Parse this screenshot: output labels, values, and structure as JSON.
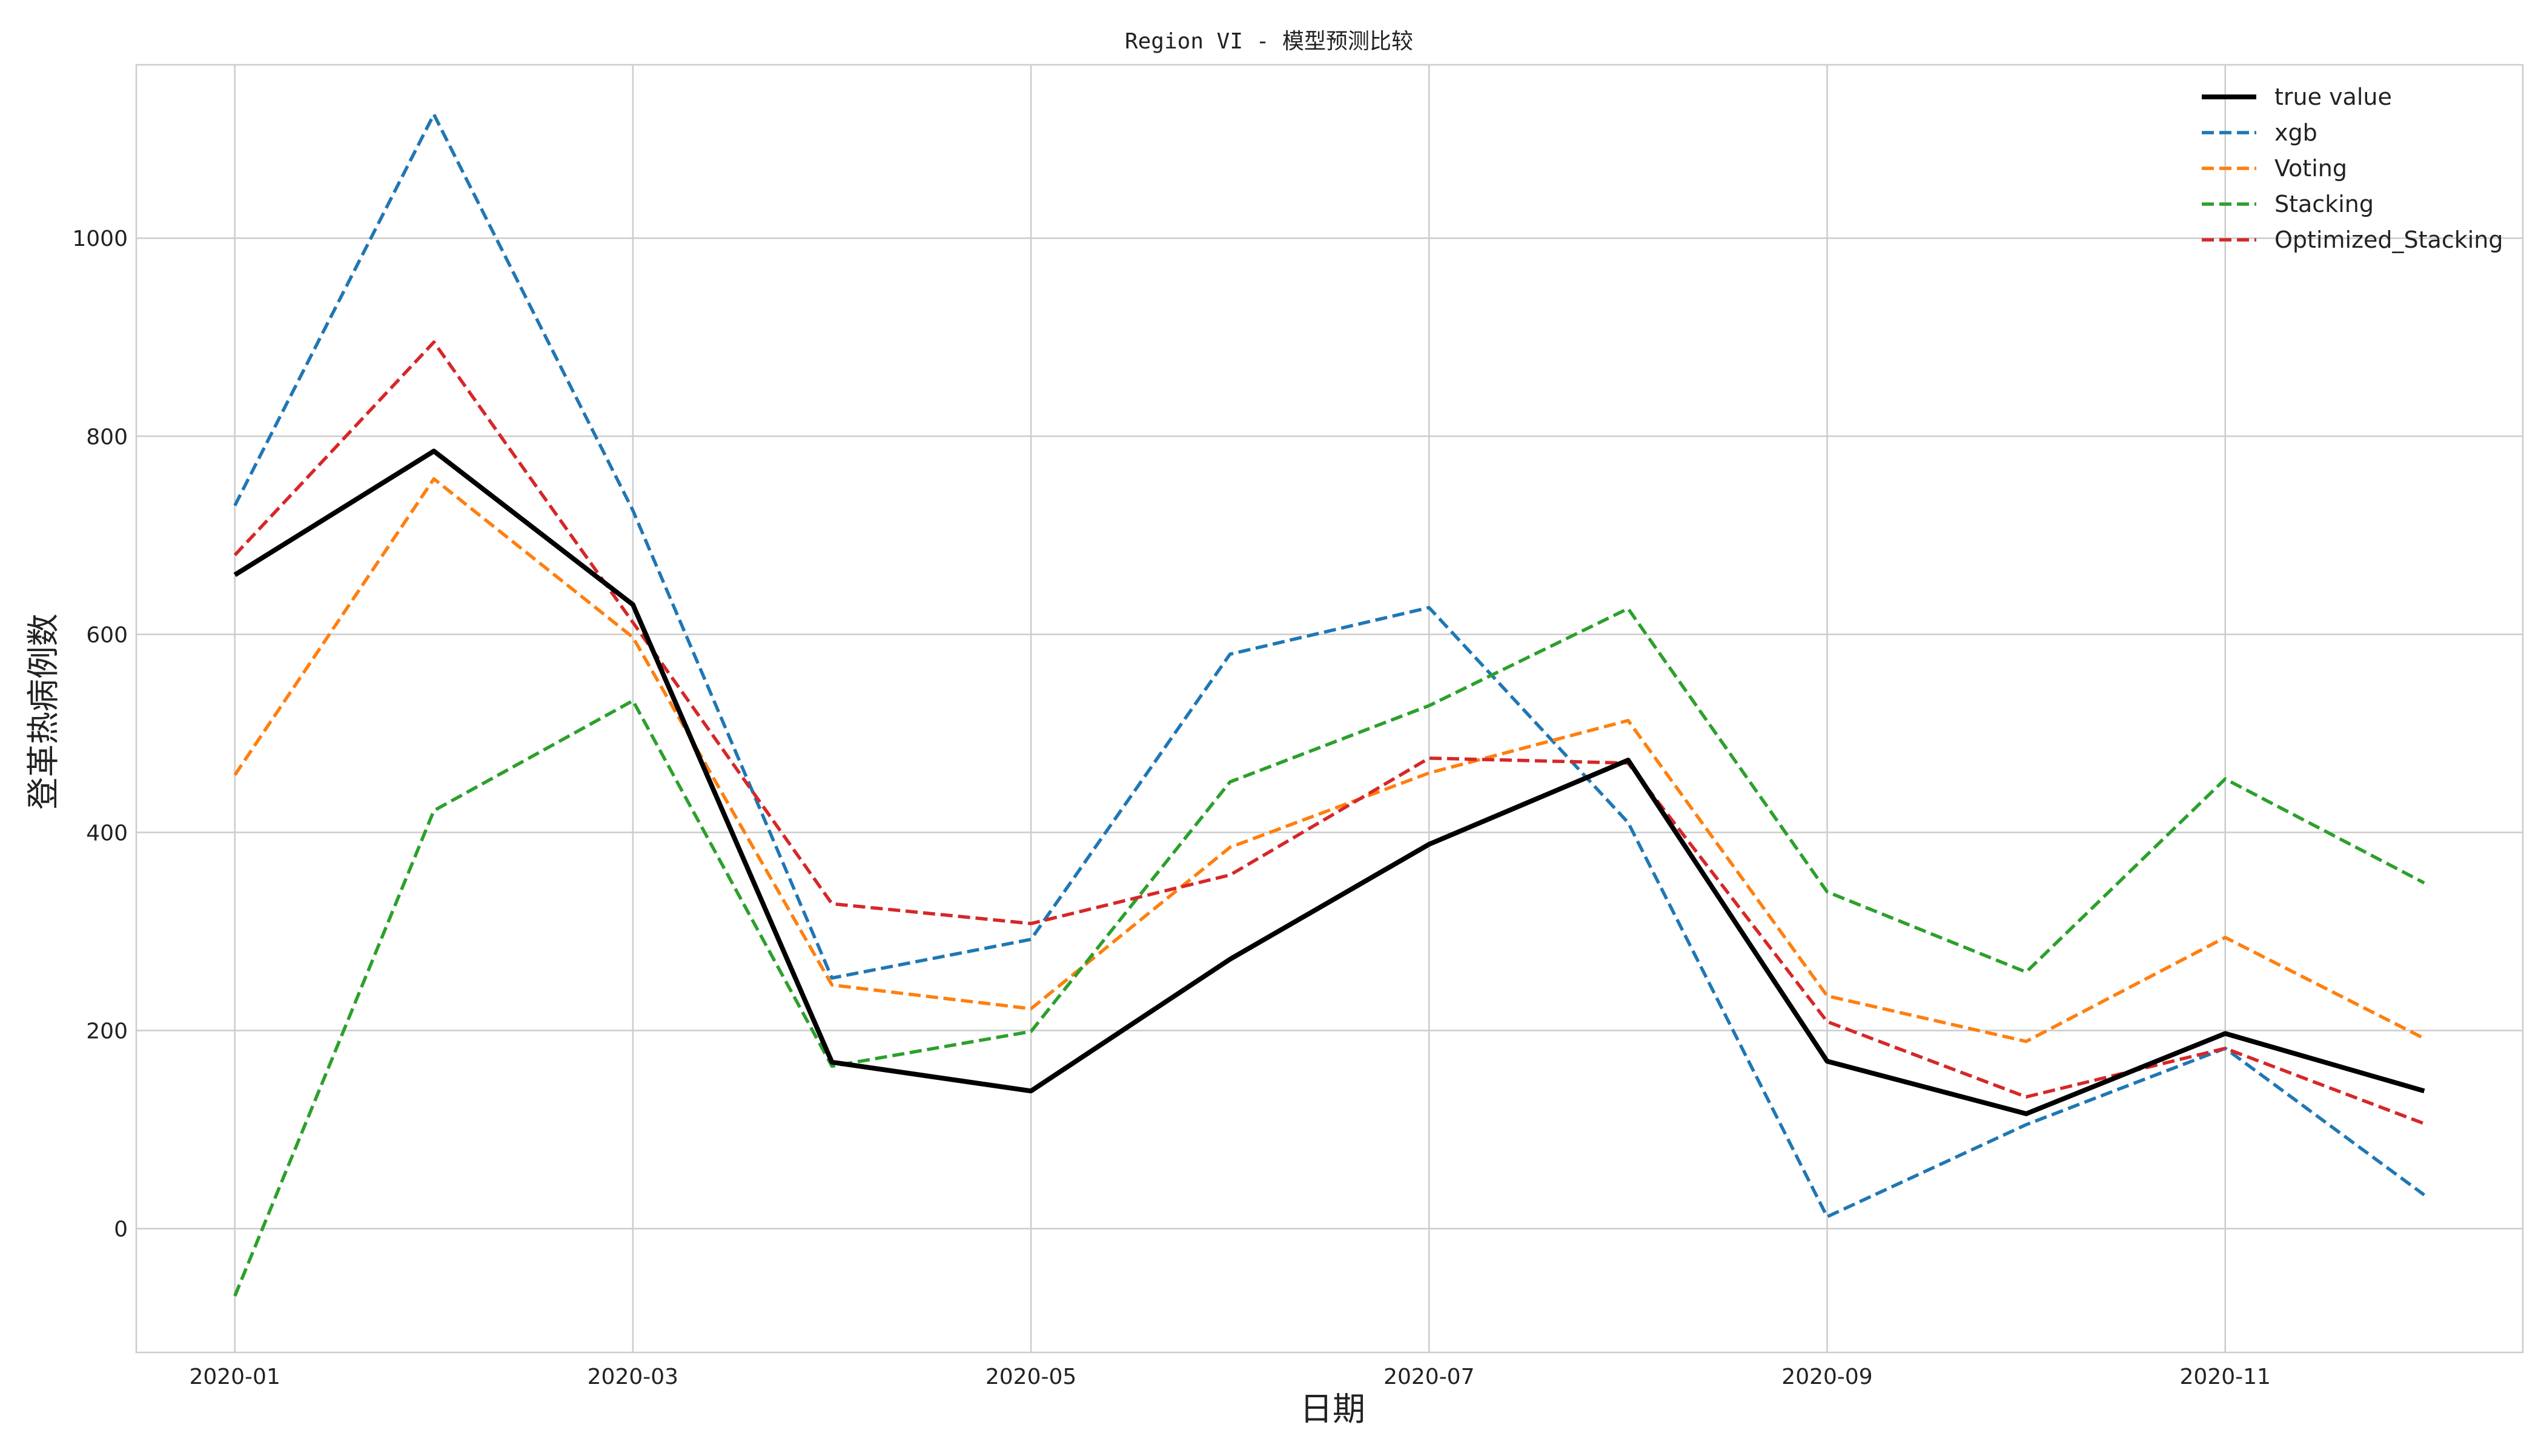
{
  "chart_data": {
    "type": "line",
    "title": "Region VI - 模型预测比较",
    "xlabel": "日期",
    "ylabel": "登革热病例数",
    "x": [
      "2020-01",
      "2020-02",
      "2020-03",
      "2020-04",
      "2020-05",
      "2020-06",
      "2020-07",
      "2020-08",
      "2020-09",
      "2020-10",
      "2020-11",
      "2020-12"
    ],
    "x_tick_labels": [
      "2020-01",
      "2020-03",
      "2020-05",
      "2020-07",
      "2020-09",
      "2020-11"
    ],
    "y_ticks": [
      0,
      200,
      400,
      600,
      800,
      1000
    ],
    "ylim": [
      -125,
      1175
    ],
    "grid": true,
    "legend_position": "top-right",
    "series": [
      {
        "name": "true value",
        "color": "#000000",
        "style": "solid",
        "values": [
          660,
          785,
          630,
          168,
          139,
          272,
          388,
          473,
          169,
          116,
          197,
          139
        ]
      },
      {
        "name": "xgb",
        "color": "#1f77b4",
        "style": "dashed",
        "values": [
          730,
          1125,
          725,
          253,
          292,
          580,
          627,
          410,
          12,
          105,
          182,
          34
        ]
      },
      {
        "name": "Voting",
        "color": "#ff7f0e",
        "style": "dashed",
        "values": [
          458,
          757,
          597,
          246,
          222,
          385,
          460,
          513,
          235,
          189,
          294,
          192
        ]
      },
      {
        "name": "Stacking",
        "color": "#2ca02c",
        "style": "dashed",
        "values": [
          -68,
          422,
          533,
          164,
          199,
          451,
          528,
          626,
          340,
          259,
          454,
          349
        ]
      },
      {
        "name": "Optimized_Stacking",
        "color": "#d62728",
        "style": "dashed",
        "values": [
          680,
          895,
          612,
          328,
          308,
          357,
          475,
          470,
          209,
          133,
          182,
          106
        ]
      }
    ]
  }
}
